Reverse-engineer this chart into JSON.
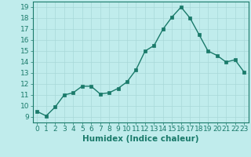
{
  "x": [
    0,
    1,
    2,
    3,
    4,
    5,
    6,
    7,
    8,
    9,
    10,
    11,
    12,
    13,
    14,
    15,
    16,
    17,
    18,
    19,
    20,
    21,
    22,
    23
  ],
  "y": [
    9.5,
    9.1,
    9.9,
    11.0,
    11.2,
    11.8,
    11.8,
    11.1,
    11.2,
    11.6,
    12.2,
    13.3,
    15.0,
    15.5,
    17.0,
    18.1,
    19.0,
    18.0,
    16.5,
    15.0,
    14.6,
    14.0,
    14.2,
    13.1
  ],
  "line_color": "#1a7a6a",
  "marker_color": "#1a7a6a",
  "bg_color": "#c0ecec",
  "grid_color": "#a8d8d8",
  "xlabel": "Humidex (Indice chaleur)",
  "xlim": [
    -0.5,
    23.5
  ],
  "ylim": [
    8.5,
    19.5
  ],
  "yticks": [
    9,
    10,
    11,
    12,
    13,
    14,
    15,
    16,
    17,
    18,
    19
  ],
  "xticks": [
    0,
    1,
    2,
    3,
    4,
    5,
    6,
    7,
    8,
    9,
    10,
    11,
    12,
    13,
    14,
    15,
    16,
    17,
    18,
    19,
    20,
    21,
    22,
    23
  ],
  "tick_fontsize": 6.5,
  "label_fontsize": 7.5
}
